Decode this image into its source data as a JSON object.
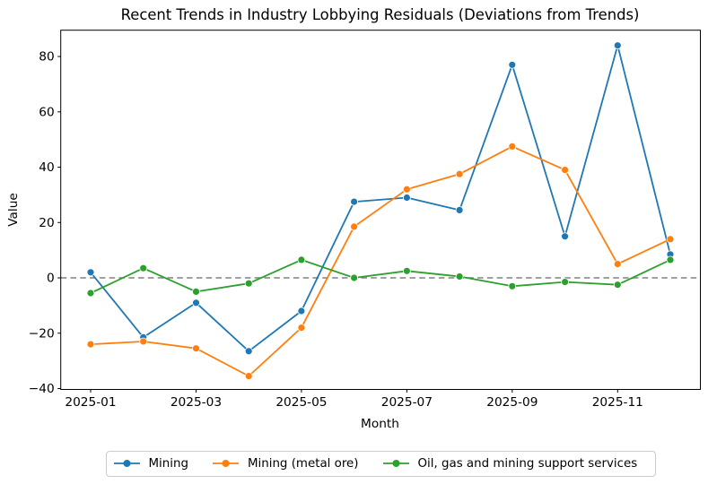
{
  "chart_data": {
    "type": "line",
    "title": "Recent Trends in Industry Lobbying Residuals (Deviations from Trends)",
    "xlabel": "Month",
    "ylabel": "Value",
    "categories": [
      "2025-01",
      "2025-02",
      "2025-03",
      "2025-04",
      "2025-05",
      "2025-06",
      "2025-07",
      "2025-08",
      "2025-09",
      "2025-10",
      "2025-11",
      "2025-12"
    ],
    "series": [
      {
        "name": "Mining",
        "color": "#1f77b4",
        "values": [
          2,
          -21.5,
          -9,
          -26.5,
          -12,
          27.5,
          29,
          24.5,
          77,
          15,
          84,
          8.5
        ]
      },
      {
        "name": "Mining (metal ore)",
        "color": "#ff7f0e",
        "values": [
          -24,
          -23,
          -25.5,
          -35.5,
          -18,
          18.5,
          32,
          37.5,
          47.5,
          39,
          5,
          14
        ]
      },
      {
        "name": "Oil, gas and mining support services",
        "color": "#2ca02c",
        "values": [
          -5.5,
          3.5,
          -5,
          -2,
          6.5,
          0,
          2.5,
          0.5,
          -3,
          -1.5,
          -2.5,
          6.5
        ]
      }
    ],
    "x_tick_indices": [
      0,
      2,
      4,
      6,
      8,
      10
    ],
    "x_tick_labels": [
      "2025-01",
      "2025-03",
      "2025-05",
      "2025-07",
      "2025-09",
      "2025-11"
    ],
    "y_ticks": [
      -40,
      -20,
      0,
      20,
      40,
      60,
      80
    ],
    "y_tick_labels": [
      "−40",
      "−20",
      "0",
      "20",
      "40",
      "60",
      "80"
    ],
    "ylim": [
      -40.4,
      89.4
    ],
    "grid": false,
    "marker": "circle",
    "zero_line": {
      "value": 0,
      "style": "dashed",
      "color": "#808080"
    },
    "legend_position": "bottom-center",
    "axis_color": "#000000",
    "background_color": "#ffffff"
  }
}
